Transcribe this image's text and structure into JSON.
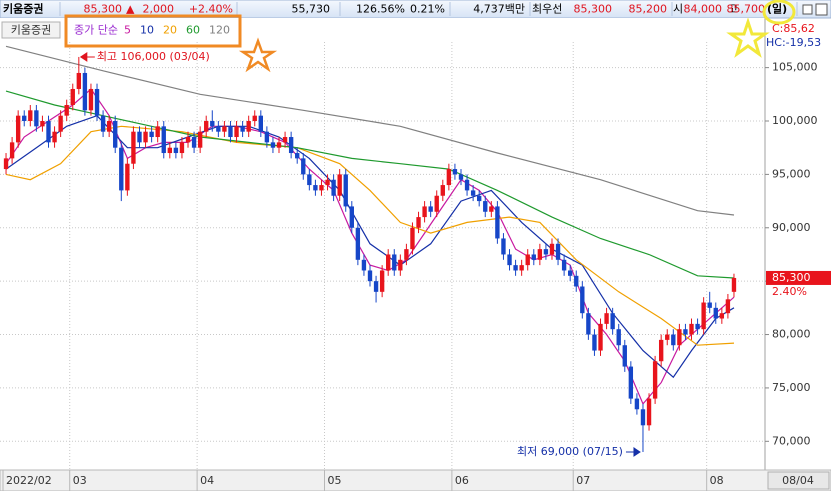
{
  "header": {
    "items": [
      {
        "text": "키움증권",
        "color": "#000000"
      },
      {
        "text": "85,300",
        "color": "#e0141e"
      },
      {
        "text": "▲",
        "color": "#e0141e"
      },
      {
        "text": "2,000",
        "color": "#e0141e"
      },
      {
        "text": "+2.40%",
        "color": "#e0141e"
      },
      {
        "text": "55,730",
        "color": "#000000"
      },
      {
        "text": "126.56%",
        "color": "#000000"
      },
      {
        "text": "0.21%",
        "color": "#000000"
      },
      {
        "text": "4,737백만",
        "color": "#000000"
      },
      {
        "text": "최우선",
        "color": "#000000"
      },
      {
        "text": "85,300",
        "color": "#e0141e"
      },
      {
        "text": "85,200",
        "color": "#e0141e"
      },
      {
        "text": "시",
        "color": "#000000"
      },
      {
        "text": "84,000",
        "color": "#e0141e"
      },
      {
        "text": "고",
        "color": "#000000"
      },
      {
        "text": "85,700",
        "color": "#e0141e"
      },
      {
        "text": "(일)",
        "color": "#000000"
      }
    ]
  },
  "chart_data": {
    "type": "candlestick",
    "title": "키움증권",
    "legend_title": "종가 단순",
    "categories": [
      "2022/02",
      null,
      null,
      null,
      null,
      null,
      null,
      null,
      null,
      null,
      null,
      "03",
      null,
      null,
      null,
      null,
      null,
      null,
      null,
      null,
      null,
      null,
      null,
      null,
      null,
      null,
      null,
      null,
      null,
      null,
      null,
      null,
      "04",
      null,
      null,
      null,
      null,
      null,
      null,
      null,
      null,
      null,
      null,
      null,
      null,
      null,
      null,
      null,
      null,
      null,
      null,
      null,
      null,
      "05",
      null,
      null,
      null,
      null,
      null,
      null,
      null,
      null,
      null,
      null,
      null,
      null,
      null,
      null,
      null,
      null,
      null,
      null,
      null,
      null,
      "06",
      null,
      null,
      null,
      null,
      null,
      null,
      null,
      null,
      null,
      null,
      null,
      null,
      null,
      null,
      null,
      null,
      null,
      null,
      null,
      "07",
      null,
      null,
      null,
      null,
      null,
      null,
      null,
      null,
      null,
      null,
      null,
      null,
      null,
      null,
      null,
      null,
      null,
      null,
      null,
      null,
      null,
      "08",
      null,
      null,
      null,
      null
    ],
    "open": [
      95500,
      96500,
      98000,
      100500,
      100000,
      101000,
      99500,
      100000,
      98000,
      99000,
      100500,
      101500,
      103000,
      104500,
      101000,
      103000,
      100500,
      99000,
      100000,
      97500,
      93500,
      96000,
      99000,
      98000,
      99000,
      98500,
      99500,
      97000,
      97500,
      97000,
      98000,
      98500,
      97500,
      99000,
      100000,
      99500,
      99000,
      99500,
      98500,
      99500,
      99000,
      100000,
      100500,
      99000,
      98000,
      97500,
      98000,
      98500,
      97000,
      96500,
      95000,
      94000,
      93500,
      94000,
      94500,
      93000,
      95000,
      92000,
      90000,
      87000,
      86000,
      85000,
      84000,
      86000,
      87500,
      86000,
      87000,
      88000,
      90000,
      91000,
      92000,
      91500,
      93000,
      94000,
      95500,
      95000,
      94500,
      93500,
      93000,
      92500,
      91500,
      92000,
      89000,
      87500,
      86500,
      86000,
      86500,
      87500,
      87000,
      88000,
      87500,
      88500,
      87000,
      86000,
      85500,
      84500,
      82000,
      80000,
      78500,
      81000,
      82000,
      80500,
      79000,
      77000,
      74000,
      73000,
      71500,
      74000,
      77500,
      79500,
      80000,
      79000,
      80500,
      80000,
      81000,
      80500,
      83000,
      82500,
      81500,
      82000,
      84000
    ],
    "high": [
      97000,
      98500,
      101000,
      101000,
      101500,
      101500,
      100500,
      100500,
      99500,
      101000,
      102000,
      103500,
      106000,
      105000,
      103500,
      103500,
      101000,
      100500,
      100500,
      98000,
      96500,
      99500,
      99500,
      99500,
      99500,
      100000,
      100000,
      98000,
      98000,
      98500,
      99000,
      99000,
      99500,
      100500,
      101000,
      100000,
      100000,
      100000,
      100000,
      100000,
      100500,
      101000,
      101000,
      99500,
      98500,
      98500,
      99000,
      99000,
      97500,
      97000,
      95500,
      94500,
      94500,
      95000,
      95000,
      95500,
      95500,
      92500,
      90500,
      87500,
      86500,
      85500,
      86500,
      88000,
      88000,
      87500,
      88500,
      90500,
      91500,
      92500,
      92500,
      93500,
      94500,
      96000,
      96000,
      95500,
      95000,
      94000,
      93500,
      93000,
      92500,
      92500,
      89500,
      88000,
      87000,
      87000,
      88000,
      88000,
      88500,
      88500,
      89000,
      89000,
      87500,
      86500,
      86000,
      85000,
      82500,
      80500,
      81500,
      82500,
      82500,
      81000,
      79500,
      77500,
      74500,
      73500,
      74500,
      78000,
      80000,
      80500,
      80500,
      81000,
      81000,
      81500,
      81500,
      83500,
      84000,
      83000,
      82500,
      83800,
      85700
    ],
    "low": [
      95000,
      96000,
      97500,
      99500,
      99500,
      99000,
      99000,
      97500,
      97500,
      98500,
      100000,
      101000,
      102500,
      100500,
      100500,
      100000,
      98500,
      98500,
      97000,
      92500,
      93000,
      95500,
      97500,
      97500,
      98000,
      98000,
      96500,
      96500,
      96500,
      96500,
      97500,
      97000,
      97000,
      98500,
      99000,
      98500,
      98500,
      98000,
      98000,
      98500,
      98500,
      99500,
      98500,
      97500,
      97000,
      97000,
      97500,
      96500,
      96000,
      94500,
      93500,
      93000,
      93000,
      93500,
      92500,
      92500,
      91500,
      89500,
      86500,
      85500,
      84500,
      83000,
      83500,
      85500,
      85500,
      85500,
      86500,
      87500,
      89500,
      90500,
      91000,
      91000,
      92500,
      93500,
      94500,
      94000,
      93000,
      92500,
      92000,
      91000,
      91000,
      88500,
      87000,
      86000,
      85500,
      85500,
      86000,
      86500,
      86500,
      87000,
      87000,
      86500,
      85500,
      85000,
      84000,
      81500,
      79500,
      78000,
      78000,
      80500,
      80000,
      78500,
      76500,
      73500,
      72500,
      69000,
      71000,
      73500,
      77000,
      79000,
      78500,
      78500,
      79500,
      79500,
      80000,
      80000,
      82000,
      81000,
      81000,
      81500,
      83500
    ],
    "close": [
      96500,
      98000,
      100500,
      100000,
      101000,
      99500,
      100000,
      98000,
      99000,
      100500,
      101500,
      103000,
      104500,
      101000,
      103000,
      100500,
      99000,
      100000,
      97500,
      93500,
      96000,
      99000,
      98000,
      99000,
      98500,
      99500,
      97000,
      97500,
      97000,
      98000,
      98500,
      97500,
      99000,
      100000,
      99500,
      99000,
      99500,
      98500,
      99500,
      99000,
      100000,
      100500,
      99000,
      98000,
      97500,
      98000,
      98500,
      97000,
      96500,
      95000,
      94000,
      93500,
      94000,
      94500,
      93000,
      95000,
      92000,
      90000,
      87000,
      86000,
      85000,
      84000,
      86000,
      87500,
      86000,
      87000,
      88000,
      90000,
      91000,
      92000,
      91500,
      93000,
      94000,
      95500,
      95000,
      94500,
      93500,
      93000,
      92500,
      91500,
      92000,
      89000,
      87500,
      86500,
      86000,
      86500,
      87500,
      87000,
      88000,
      87500,
      88500,
      87000,
      86000,
      85500,
      84500,
      82000,
      80000,
      78500,
      81000,
      82000,
      80500,
      79000,
      77000,
      74000,
      73000,
      71500,
      74000,
      77500,
      79500,
      80000,
      79000,
      80500,
      80000,
      81000,
      80500,
      83000,
      82500,
      81500,
      82000,
      83300,
      85300
    ],
    "up_color": "#e8141c",
    "down_color": "#1646c8",
    "ma_series": [
      {
        "name": "5",
        "color": "#c81aa0",
        "x": [
          0,
          3,
          7,
          11,
          14,
          17,
          20,
          23,
          26,
          30,
          34,
          38,
          42,
          46,
          50,
          54,
          57,
          60,
          63,
          66,
          69,
          72,
          75,
          78,
          81,
          84,
          87,
          90,
          93,
          96,
          99,
          102,
          105,
          108,
          111,
          114,
          117,
          120
        ],
        "values": [
          96000,
          98500,
          100000,
          101500,
          103000,
          100500,
          96500,
          97500,
          98000,
          98000,
          99500,
          99500,
          99000,
          98000,
          95500,
          93500,
          89500,
          86500,
          86000,
          87000,
          89500,
          92000,
          94500,
          93500,
          91500,
          88000,
          87000,
          87500,
          86500,
          82000,
          80000,
          77500,
          73500,
          75500,
          79000,
          80500,
          82000,
          83500
        ]
      },
      {
        "name": "10",
        "color": "#1530a8",
        "x": [
          0,
          5,
          10,
          15,
          20,
          25,
          30,
          35,
          40,
          45,
          50,
          55,
          60,
          65,
          70,
          75,
          80,
          85,
          90,
          95,
          100,
          105,
          110,
          113,
          117,
          120
        ],
        "values": [
          95500,
          97500,
          99500,
          100500,
          97500,
          97500,
          98500,
          99500,
          99500,
          98500,
          96500,
          93500,
          88500,
          86500,
          88500,
          92500,
          93500,
          90500,
          88000,
          86500,
          82000,
          78500,
          76000,
          78500,
          81500,
          82500
        ]
      },
      {
        "name": "20",
        "color": "#f0a000",
        "x": [
          0,
          4,
          9,
          14,
          19,
          29,
          38,
          48,
          55,
          60,
          65,
          70,
          76,
          83,
          88,
          94,
          101,
          108,
          114,
          120
        ],
        "values": [
          95000,
          94500,
          96000,
          99000,
          99500,
          99000,
          98000,
          97500,
          96000,
          93500,
          90500,
          89500,
          90500,
          91000,
          90500,
          87000,
          84000,
          81500,
          79000,
          79200
        ]
      },
      {
        "name": "60",
        "color": "#1f9a2e",
        "x": [
          0,
          8,
          16,
          24,
          32,
          40,
          48,
          57,
          65,
          73,
          81,
          90,
          98,
          106,
          114,
          120
        ],
        "values": [
          102800,
          101500,
          100500,
          99500,
          98500,
          98000,
          97500,
          96500,
          96000,
          95500,
          93500,
          91000,
          89000,
          87500,
          85500,
          85300
        ]
      },
      {
        "name": "120",
        "color": "#808080",
        "x": [
          0,
          16,
          32,
          49,
          65,
          81,
          98,
          114,
          120
        ],
        "values": [
          107000,
          104700,
          102500,
          101000,
          99500,
          97000,
          94500,
          91600,
          91200
        ]
      }
    ],
    "ylim": [
      67500,
      107400
    ],
    "yticks": [
      {
        "value": 70000,
        "label": "70,000"
      },
      {
        "value": 75000,
        "label": "75,000"
      },
      {
        "value": 80000,
        "label": "80,000"
      },
      {
        "value": 85000,
        "label": "85,000"
      },
      {
        "value": 90000,
        "label": "90,000"
      },
      {
        "value": 95000,
        "label": "95,000"
      },
      {
        "value": 100000,
        "label": "100,000"
      },
      {
        "value": 105000,
        "label": "105,000"
      }
    ],
    "grid": true,
    "annotations": [
      {
        "value": 106000,
        "label": "최고 106,000 (03/04)",
        "color": "#e0141e",
        "kind": "high"
      },
      {
        "value": 69000,
        "label": "최저 69,000 (07/15)",
        "color": "#1530a8",
        "kind": "low"
      }
    ],
    "last_price": {
      "value": 85300,
      "label": "85,300"
    },
    "last_change": "2.40%",
    "indicator_labels": [
      "C:85,62",
      "HC:-19,53"
    ],
    "last_date": "08/04"
  }
}
